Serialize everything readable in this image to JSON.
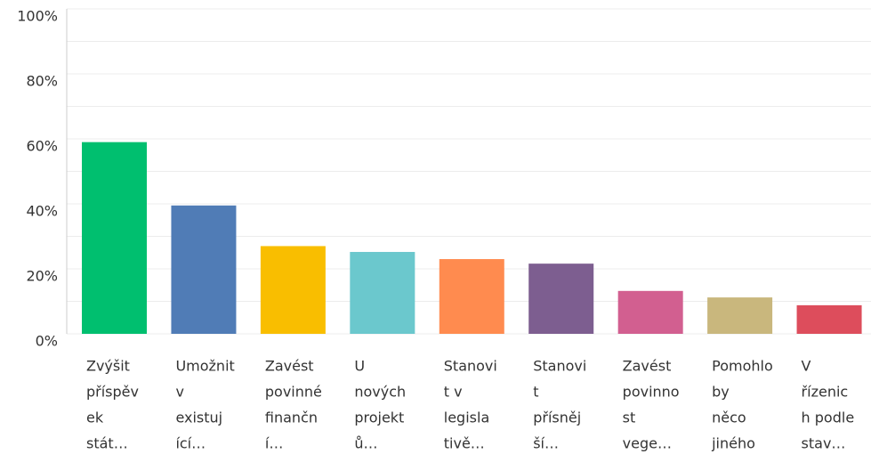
{
  "chart_data": {
    "type": "bar",
    "categories": [
      [
        "Zvýšit",
        "příspěv",
        "ek",
        "stát…"
      ],
      [
        "Umožnit",
        "v",
        "existuj",
        "ící…"
      ],
      [
        "Zavést",
        "povinné",
        "finančn",
        "í…"
      ],
      [
        "U",
        "nových",
        "projekt",
        "ů…"
      ],
      [
        "Stanovi",
        "t v",
        "legisla",
        "tivě…"
      ],
      [
        "Stanovi",
        "t",
        "přísněj",
        "ší…"
      ],
      [
        "Zavést",
        "povinno",
        "st",
        "vege…"
      ],
      [
        "Pomohlo",
        "by",
        "něco",
        "jiného"
      ],
      [
        "V",
        "řízenic",
        "h podle",
        "stav…"
      ]
    ],
    "values": [
      59,
      39.5,
      27,
      25.2,
      23,
      21.6,
      13.2,
      11.2,
      8.8
    ],
    "colors": [
      "#00bf6f",
      "#507cb6",
      "#f9be00",
      "#6bc8cd",
      "#ff8b4f",
      "#7d5e90",
      "#d25f90",
      "#c9b77d",
      "#dd4d5c"
    ],
    "ylim": [
      0,
      100
    ],
    "yticks": [
      {
        "value": 0,
        "label": "0%"
      },
      {
        "value": 20,
        "label": "20%"
      },
      {
        "value": 40,
        "label": "40%"
      },
      {
        "value": 60,
        "label": "60%"
      },
      {
        "value": 80,
        "label": "80%"
      },
      {
        "value": 100,
        "label": "100%"
      }
    ],
    "minor_yticks": [
      10,
      30,
      50,
      70,
      90
    ],
    "grid": true
  }
}
